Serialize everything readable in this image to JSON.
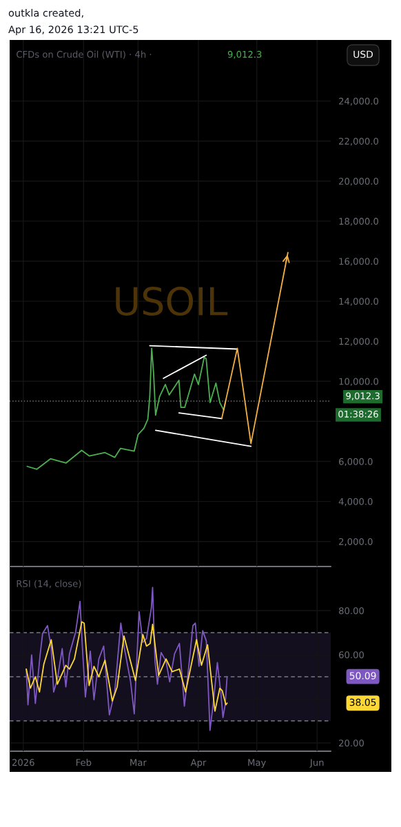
{
  "chart_data": [
    {
      "type": "line",
      "title": "CFDs on Crude Oil (WTI) · 4h ·",
      "annotations": [
        "outkla created,",
        "Apr 16, 2026 13:21 UTC-5",
        "9,012.3",
        "USD",
        "USOIL",
        "01:38:26"
      ],
      "xlim": [
        "2025-12-25",
        "2026-06-08"
      ],
      "xticks": [
        {
          "value": "2026-01-01",
          "label": null
        },
        {
          "value": "2026-02-01",
          "label": null
        },
        {
          "value": "2026-03-01",
          "label": null
        },
        {
          "value": "2026-04-01",
          "label": null
        },
        {
          "value": "2026-05-01",
          "label": null
        },
        {
          "value": "2026-06-01",
          "label": null
        }
      ],
      "ylim": [
        750,
        27050
      ],
      "yticks": [
        {
          "value": 2000,
          "label": "2,000.0"
        },
        {
          "value": 4000,
          "label": "4,000.0"
        },
        {
          "value": 6000,
          "label": "6,000.0"
        },
        {
          "value": 8000,
          "label": null
        },
        {
          "value": 10000,
          "label": "10,000.0"
        },
        {
          "value": 12000,
          "label": "12,000.0"
        },
        {
          "value": 14000,
          "label": "14,000.0"
        },
        {
          "value": 16000,
          "label": "16,000.0"
        },
        {
          "value": 18000,
          "label": "18,000.0"
        },
        {
          "value": 20000,
          "label": "20,000.0"
        },
        {
          "value": 22000,
          "label": "22,000.0"
        },
        {
          "value": 24000,
          "label": "24,000.0"
        }
      ],
      "tick_labels": "y",
      "grid": true,
      "ref_lines": [
        {
          "axis": "y",
          "value": 9012.3,
          "label": "9,012.3",
          "color": "#787b86",
          "line_style": "dotted"
        }
      ],
      "series": [
        {
          "color": "#4caf50",
          "x": [
            "2026-01-03",
            "2026-01-08",
            "2026-01-15",
            "2026-01-23",
            "2026-01-31",
            "2026-02-04",
            "2026-02-12",
            "2026-02-17",
            "2026-02-20",
            "2026-02-27",
            "2026-03-01",
            "2026-03-04",
            "2026-03-06",
            "2026-03-07",
            "2026-03-08",
            "2026-03-09",
            "2026-03-10",
            "2026-03-12",
            "2026-03-15",
            "2026-03-17",
            "2026-03-22",
            "2026-03-23",
            "2026-03-25",
            "2026-03-30",
            "2026-04-01",
            "2026-04-04",
            "2026-04-05",
            "2026-04-07",
            "2026-04-10",
            "2026-04-12",
            "2026-04-14",
            "2026-04-15"
          ],
          "values": [
            5750,
            5610,
            6130,
            5920,
            6550,
            6270,
            6440,
            6200,
            6650,
            6510,
            7340,
            7660,
            8100,
            9220,
            11650,
            10360,
            8310,
            9220,
            9840,
            9320,
            10050,
            8700,
            8700,
            10360,
            9840,
            11200,
            11130,
            8940,
            9910,
            8940,
            8560,
            9012.3
          ]
        },
        {
          "color": "#ffffff",
          "x": [
            "2026-03-07",
            "2026-04-21"
          ],
          "values": [
            11780,
            11610
          ]
        },
        {
          "color": "#ffffff",
          "x": [
            "2026-03-14",
            "2026-04-05"
          ],
          "values": [
            10150,
            11300
          ]
        },
        {
          "color": "#ffffff",
          "x": [
            "2026-03-22",
            "2026-04-13"
          ],
          "values": [
            8420,
            8140
          ]
        },
        {
          "color": "#ffffff",
          "x": [
            "2026-03-10",
            "2026-04-28"
          ],
          "values": [
            7550,
            6750
          ]
        },
        {
          "color": "#f5b041",
          "x": [
            "2026-04-13",
            "2026-04-21",
            "2026-04-28",
            "2026-05-17"
          ],
          "values": [
            8140,
            11650,
            6890,
            16430
          ]
        }
      ]
    },
    {
      "type": "line",
      "title": "RSI (14, close)",
      "xlim": [
        "2025-12-25",
        "2026-06-08"
      ],
      "xticks": [
        {
          "value": "2026-01-01",
          "label": "2026"
        },
        {
          "value": "2026-02-01",
          "label": "Feb"
        },
        {
          "value": "2026-03-01",
          "label": "Mar"
        },
        {
          "value": "2026-04-01",
          "label": "Apr"
        },
        {
          "value": "2026-05-01",
          "label": "May"
        },
        {
          "value": "2026-06-01",
          "label": "Jun"
        }
      ],
      "ylim": [
        16.25,
        98.75
      ],
      "yticks": [
        {
          "value": 20,
          "label": "20.00"
        },
        {
          "value": 40,
          "label": null
        },
        {
          "value": 60,
          "label": "60.00"
        },
        {
          "value": 80,
          "label": "80.00"
        }
      ],
      "grid": true,
      "bands": [
        {
          "axis": "y",
          "from": 30,
          "to": 70,
          "color": "#130f1f"
        }
      ],
      "ref_lines": [
        {
          "axis": "y",
          "value": 70,
          "color": "#787b86",
          "line_style": "dashed"
        },
        {
          "axis": "y",
          "value": 50,
          "color": "#787b86",
          "line_style": "dashed"
        },
        {
          "axis": "y",
          "value": 30,
          "color": "#787b86",
          "line_style": "dashed"
        }
      ],
      "annotations": [
        "50.09",
        "38.05"
      ],
      "series": [
        {
          "color": "#7e57c2",
          "x": [
            "2026-01-02T13:00",
            "2026-01-03T10:00",
            "2026-01-05T07:00",
            "2026-01-07T05:00",
            "2026-01-09T17:00",
            "2026-01-10T23:00",
            "2026-01-13T11:00",
            "2026-01-15T09:00",
            "2026-01-16T15:00",
            "2026-01-18T12:00",
            "2026-01-21T00:00",
            "2026-01-22T21:00",
            "2026-01-24T18:00",
            "2026-01-27T22:00",
            "2026-01-30T04:00",
            "2026-01-31T10:00",
            "2026-02-01T22:00",
            "2026-02-04T11:00",
            "2026-02-06T08:00",
            "2026-02-08T20:00",
            "2026-02-11T08:00",
            "2026-02-14T06:00",
            "2026-02-17T00:00",
            "2026-02-20T03:00",
            "2026-02-22T00:00",
            "2026-02-25T04:00",
            "2026-02-27T01:00",
            "2026-03-01T13:00",
            "2026-03-03T11:00",
            "2026-03-05T08:00",
            "2026-03-07T20:00",
            "2026-03-08T11:00",
            "2026-03-09T17:00",
            "2026-03-10T23:00",
            "2026-03-12T20:00",
            "2026-03-15T09:00",
            "2026-03-17T06:00",
            "2026-03-19T18:00",
            "2026-03-22T06:00",
            "2026-03-24T19:00",
            "2026-03-26T16:00",
            "2026-03-29T04:00",
            "2026-03-30T10:00",
            "2026-04-01T07:00",
            "2026-04-03T05:00",
            "2026-04-05T02:00",
            "2026-04-06T23:00",
            "2026-04-08T20:00",
            "2026-04-10T18:00",
            "2026-04-12T15:00",
            "2026-04-13T15:00",
            "2026-04-14T18:00",
            "2026-04-15T18:00"
          ],
          "values": [
            53.5,
            37.3,
            59.9,
            37.9,
            60.4,
            69.7,
            73.2,
            62.8,
            43.1,
            48.9,
            62.8,
            45.4,
            60.4,
            70.3,
            84.2,
            62.8,
            40.8,
            61.6,
            39.6,
            58.1,
            63.9,
            32.7,
            43.1,
            74.3,
            62.8,
            47.7,
            33.2,
            79.5,
            65.6,
            67.4,
            81.3,
            90.5,
            57.0,
            46.6,
            61.0,
            57.0,
            47.7,
            60.4,
            65.1,
            36.7,
            51.2,
            73.2,
            74.3,
            54.7,
            70.9,
            66.2,
            25.7,
            39.6,
            56.4,
            41.9,
            31.5,
            37.3,
            50.09
          ]
        },
        {
          "color": "#fdd835",
          "x": [
            "2026-01-02T13:00",
            "2026-01-04T16:00",
            "2026-01-07T05:00",
            "2026-01-09T08:00",
            "2026-01-11T14:00",
            "2026-01-15T09:00",
            "2026-01-18T12:00",
            "2026-01-22T21:00",
            "2026-01-24T18:00",
            "2026-01-27T07:00",
            "2026-01-31T01:00",
            "2026-02-01T07:00",
            "2026-02-03T20:00",
            "2026-02-06T08:00",
            "2026-02-08T20:00",
            "2026-02-12T00:00",
            "2026-02-15T18:00",
            "2026-02-18T06:00",
            "2026-02-21T18:00",
            "2026-02-27T16:00",
            "2026-03-03T11:00",
            "2026-03-05T08:00",
            "2026-03-07T05:00",
            "2026-03-08T11:00",
            "2026-03-11T14:00",
            "2026-03-15T09:00",
            "2026-03-18T12:00",
            "2026-03-22T06:00",
            "2026-03-25T10:00",
            "2026-03-31T01:00",
            "2026-04-02T14:00",
            "2026-04-05T17:00",
            "2026-04-09T12:00",
            "2026-04-12T00:00",
            "2026-04-13T06:00",
            "2026-04-15T03:00",
            "2026-04-15T18:00"
          ],
          "values": [
            53.5,
            44.8,
            50.0,
            43.1,
            55.8,
            66.8,
            46.6,
            55.2,
            53.5,
            58.1,
            74.9,
            74.3,
            46.0,
            54.7,
            50.0,
            57.5,
            39.0,
            45.4,
            68.5,
            48.3,
            69.1,
            63.9,
            65.1,
            73.8,
            50.6,
            58.1,
            52.3,
            53.5,
            43.1,
            66.8,
            55.2,
            64.5,
            34.4,
            44.8,
            43.7,
            37.3,
            38.05
          ]
        }
      ]
    }
  ]
}
